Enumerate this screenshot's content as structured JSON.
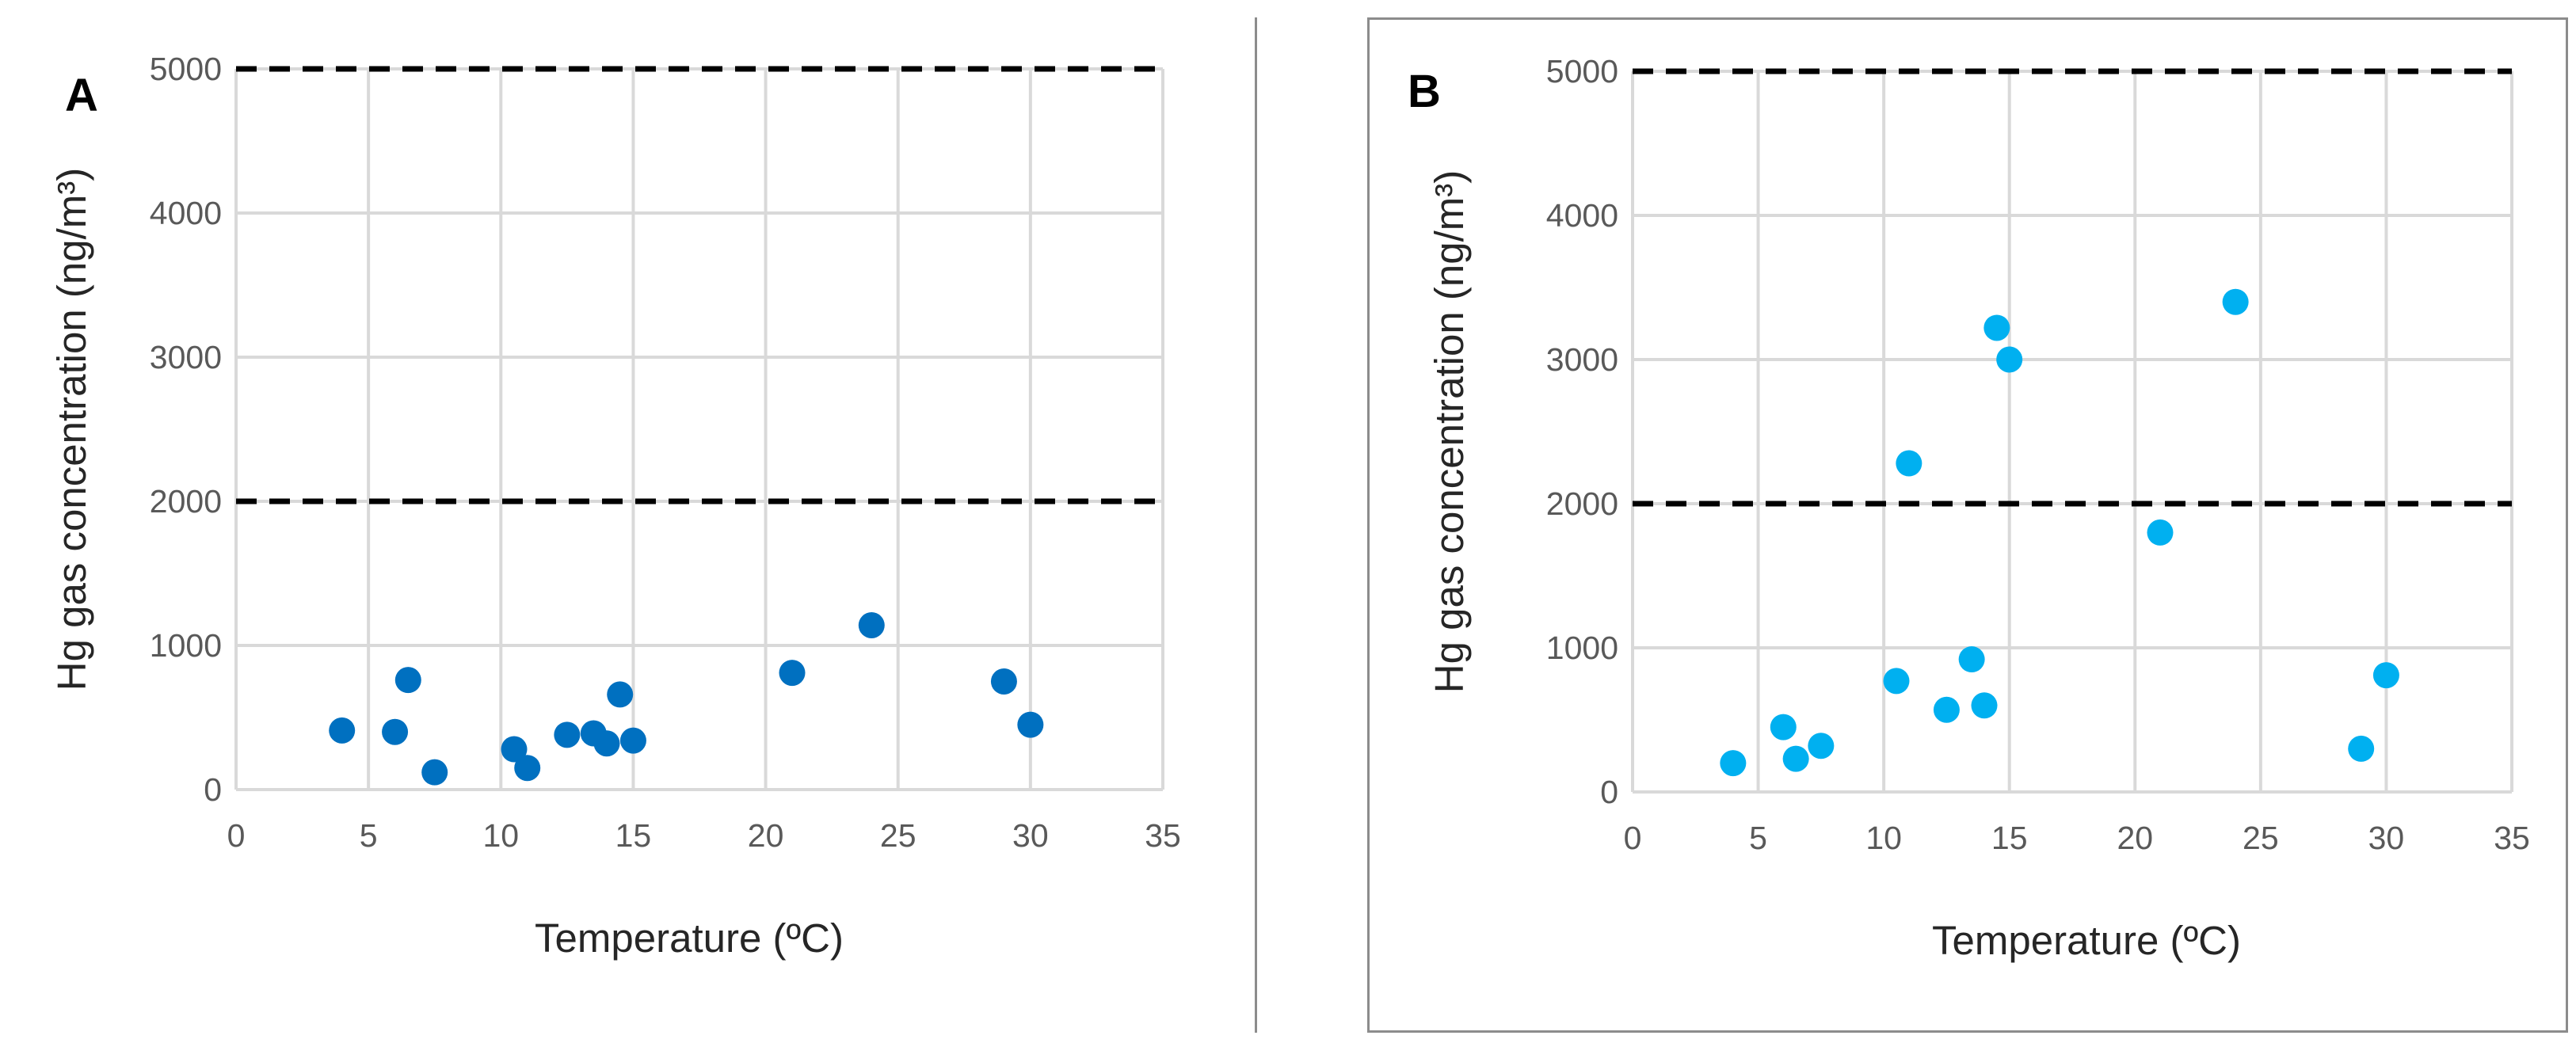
{
  "colors": {
    "panel_a_points": "#0070c0",
    "panel_b_points": "#00b0f0",
    "reference_line": "#000000",
    "grid": "#d9d9d9"
  },
  "chart_data": [
    {
      "type": "scatter",
      "panel_label": "A",
      "xlabel": "Temperature (ºC)",
      "ylabel": "Hg gas concentration (ng/m³)",
      "xlim": [
        0,
        35
      ],
      "ylim": [
        0,
        5000
      ],
      "x_ticks": [
        "0",
        "5",
        "10",
        "15",
        "20",
        "25",
        "30",
        "35"
      ],
      "y_ticks": [
        "0",
        "1000",
        "2000",
        "3000",
        "4000",
        "5000"
      ],
      "grid": true,
      "reference_lines": [
        2000,
        5000
      ],
      "series": [
        {
          "name": "A",
          "color": "#0070c0",
          "x": [
            4,
            6,
            6.5,
            7.5,
            10.5,
            11,
            12.5,
            13.5,
            14,
            14.5,
            15,
            21,
            24,
            29,
            30
          ],
          "y": [
            410,
            400,
            760,
            120,
            280,
            150,
            380,
            390,
            320,
            660,
            340,
            810,
            1140,
            750,
            450
          ]
        }
      ]
    },
    {
      "type": "scatter",
      "panel_label": "B",
      "xlabel": "Temperature (ºC)",
      "ylabel": "Hg gas concentration (ng/m³)",
      "xlim": [
        0,
        35
      ],
      "ylim": [
        0,
        5000
      ],
      "x_ticks": [
        "0",
        "5",
        "10",
        "15",
        "20",
        "25",
        "30",
        "35"
      ],
      "y_ticks": [
        "0",
        "1000",
        "2000",
        "3000",
        "4000",
        "5000"
      ],
      "grid": true,
      "reference_lines": [
        2000,
        5000
      ],
      "series": [
        {
          "name": "B",
          "color": "#00b0f0",
          "x": [
            4,
            6,
            6.5,
            7.5,
            10.5,
            11,
            12.5,
            13.5,
            14,
            14.5,
            15,
            21,
            24,
            29,
            30
          ],
          "y": [
            200,
            450,
            230,
            320,
            770,
            2280,
            570,
            920,
            600,
            3220,
            3000,
            1800,
            3400,
            300,
            810
          ]
        }
      ]
    }
  ]
}
